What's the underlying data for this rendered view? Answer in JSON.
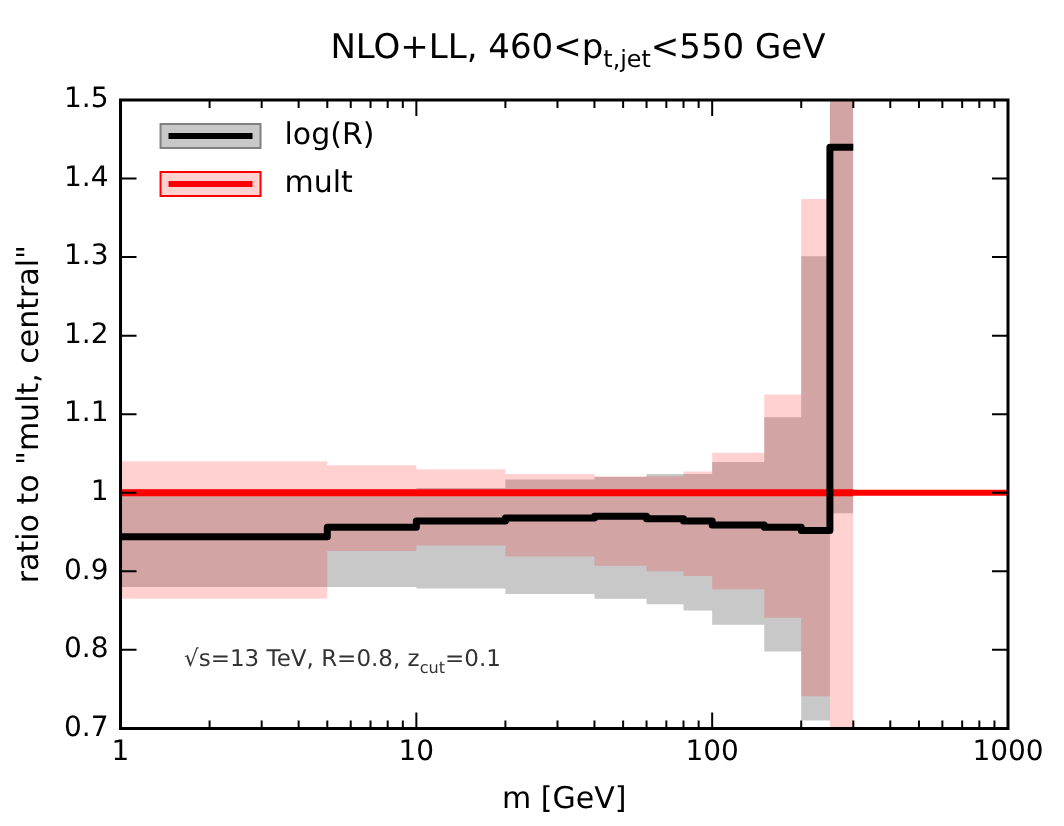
{
  "chart_data": {
    "type": "step",
    "title": "NLO+LL, 460<p$_{t,jet}$<550 GeV",
    "xlabel": "m [GeV]",
    "ylabel": "ratio to \"mult, central\"",
    "annotations": [
      "√s=13 TeV, R=0.8, z$_{cut}$=0.1"
    ],
    "x": [
      1,
      5,
      10,
      20,
      40,
      60,
      80,
      100,
      150,
      200,
      250,
      300
    ],
    "series": [
      {
        "name": "log(R)",
        "color": "#000000",
        "values": [
          0.944,
          0.956,
          0.964,
          0.968,
          0.97,
          0.967,
          0.964,
          0.959,
          0.956,
          0.952,
          1.44,
          1.44
        ],
        "lower": [
          0.88,
          0.88,
          0.878,
          0.871,
          0.865,
          0.858,
          0.85,
          0.832,
          0.798,
          0.71,
          0.974,
          0.974
        ],
        "upper": [
          1.0,
          1.0,
          1.006,
          1.017,
          1.02,
          1.024,
          1.024,
          1.039,
          1.096,
          1.301,
          1.5,
          1.5
        ]
      },
      {
        "name": "mult",
        "color": "#ff0000",
        "values": [
          1,
          1,
          1,
          1,
          1,
          1,
          1,
          1,
          1,
          1,
          1,
          1
        ],
        "lower": [
          0.865,
          0.926,
          0.933,
          0.919,
          0.907,
          0.9,
          0.894,
          0.877,
          0.841,
          0.741,
          0.7,
          0.7
        ],
        "upper": [
          1.04,
          1.035,
          1.03,
          1.024,
          1.021,
          1.021,
          1.027,
          1.051,
          1.125,
          1.374,
          1.5,
          1.5
        ]
      }
    ],
    "ref_lines": [
      {
        "axis": "y",
        "value": 1,
        "color": "#ff0000"
      }
    ],
    "log": "x",
    "xlim": [
      1,
      1000
    ],
    "xticks": [
      1,
      {
        "value": 2,
        "label": null
      },
      {
        "value": 3,
        "label": null
      },
      {
        "value": 4,
        "label": null
      },
      {
        "value": 5,
        "label": null
      },
      {
        "value": 6,
        "label": null
      },
      {
        "value": 7,
        "label": null
      },
      {
        "value": 8,
        "label": null
      },
      {
        "value": 9,
        "label": null
      },
      10,
      {
        "value": 20,
        "label": null
      },
      {
        "value": 30,
        "label": null
      },
      {
        "value": 40,
        "label": null
      },
      {
        "value": 50,
        "label": null
      },
      {
        "value": 60,
        "label": null
      },
      {
        "value": 70,
        "label": null
      },
      {
        "value": 80,
        "label": null
      },
      {
        "value": 90,
        "label": null
      },
      100,
      {
        "value": 200,
        "label": null
      },
      {
        "value": 300,
        "label": null
      },
      {
        "value": 400,
        "label": null
      },
      {
        "value": 500,
        "label": null
      },
      {
        "value": 600,
        "label": null
      },
      {
        "value": 700,
        "label": null
      },
      {
        "value": 800,
        "label": null
      },
      {
        "value": 900,
        "label": null
      },
      1000
    ],
    "ylim": [
      0.7,
      1.5
    ],
    "yticks": [
      0.7,
      0.8,
      0.9,
      1,
      1.1,
      1.2,
      1.3,
      1.4,
      1.5
    ],
    "grid": false,
    "legend": "top left"
  }
}
